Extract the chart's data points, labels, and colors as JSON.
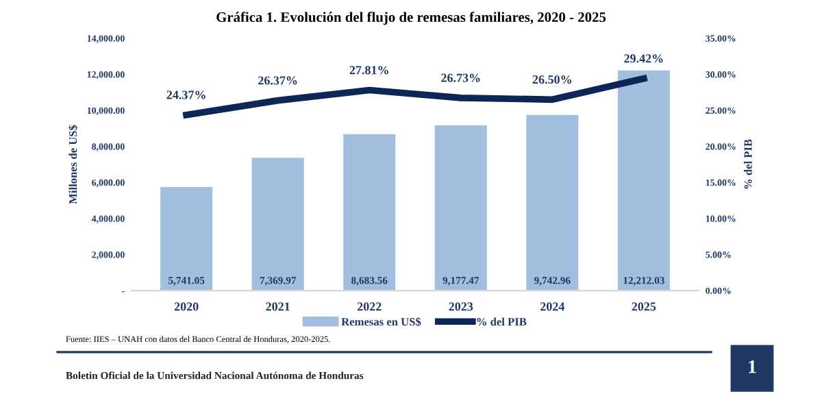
{
  "chart_data": {
    "type": "bar",
    "title": "Gráfica 1. Evolución del flujo de remesas familiares, 2020 - 2025",
    "categories": [
      "2020",
      "2021",
      "2022",
      "2023",
      "2024",
      "2025"
    ],
    "series": [
      {
        "name": "Remesas en US$",
        "color": "#a3bfe0",
        "values": [
          5741.05,
          7369.97,
          8683.56,
          9177.47,
          9742.96,
          12212.03
        ],
        "value_labels": [
          "5,741.05",
          "7,369.97",
          "8,683.56",
          "9,177.47",
          "9,742.96",
          "12,212.03"
        ]
      },
      {
        "name": "% del PIB",
        "type": "line",
        "axis": "y2",
        "color": "#0d2557",
        "values": [
          24.37,
          26.37,
          27.81,
          26.73,
          26.5,
          29.42
        ],
        "value_labels": [
          "24.37%",
          "26.37%",
          "27.81%",
          "26.73%",
          "26.50%",
          "29.42%"
        ]
      }
    ],
    "ylabel": "Millones de US$",
    "y2label": "% del PIB",
    "ylim": [
      0,
      14000
    ],
    "yticks": [
      {
        "value": 0,
        "label": "-"
      },
      {
        "value": 2000,
        "label": "2,000.00"
      },
      {
        "value": 4000,
        "label": "4,000.00"
      },
      {
        "value": 6000,
        "label": "6,000.00"
      },
      {
        "value": 8000,
        "label": "8,000.00"
      },
      {
        "value": 10000,
        "label": "10,000.00"
      },
      {
        "value": 12000,
        "label": "12,000.00"
      },
      {
        "value": 14000,
        "label": "14,000.00"
      }
    ],
    "y2lim": [
      0,
      35
    ],
    "y2ticks": [
      {
        "value": 0,
        "label": "0.00%"
      },
      {
        "value": 5,
        "label": "5.00%"
      },
      {
        "value": 10,
        "label": "10.00%"
      },
      {
        "value": 15,
        "label": "15.00%"
      },
      {
        "value": 20,
        "label": "20.00%"
      },
      {
        "value": 25,
        "label": "25.00%"
      },
      {
        "value": 30,
        "label": "30.00%"
      },
      {
        "value": 35,
        "label": "35.00%"
      }
    ],
    "legend": "bottom",
    "grid": false,
    "marker": "none",
    "line_style": "solid",
    "annotations": [
      "Fuente: IIES – UNAH con datos del Banco Central de Honduras, 2020-2025.",
      "Boletin Oficial de la Universidad Nacional Autónoma de Honduras",
      "1"
    ]
  }
}
